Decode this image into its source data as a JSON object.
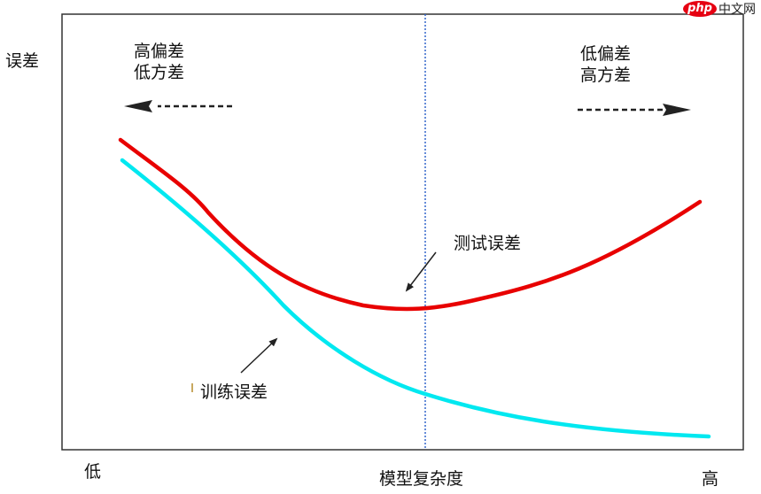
{
  "diagram": {
    "y_axis_label": "误差",
    "x_axis_label": "模型复杂度",
    "x_low_label": "低",
    "x_high_label": "高",
    "left_region": {
      "line1": "高偏差",
      "line2": "低方差"
    },
    "right_region": {
      "line1": "低偏差",
      "line2": "高方差"
    },
    "test_error_label": "测试误差",
    "train_error_label": "训练误差",
    "test_curve_color": "#e80000",
    "train_curve_color": "#00e8f0",
    "divider_color": "#3366cc"
  },
  "watermark": {
    "logo": "php",
    "text": "中文网"
  }
}
